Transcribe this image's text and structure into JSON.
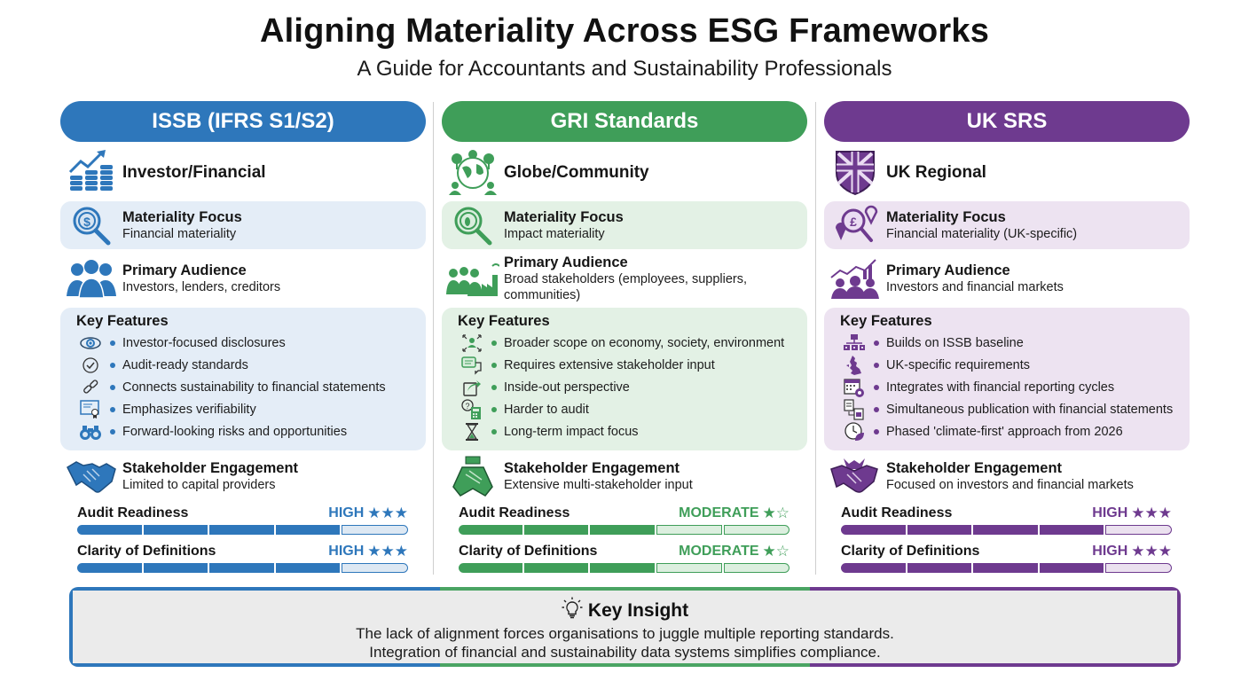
{
  "title": "Aligning Materiality Across ESG Frameworks",
  "subtitle": "A Guide for Accountants and Sustainability Professionals",
  "columns": [
    {
      "name": "ISSB (IFRS S1/S2)",
      "color": "#2e77bb",
      "light": "#e4edf7",
      "bar_empty": "#dde8f3",
      "orientation": {
        "icon": "coins-growth-icon",
        "label": "Investor/Financial"
      },
      "materiality": {
        "icon": "dollar-magnifier-icon",
        "label": "Materiality Focus",
        "value": "Financial materiality"
      },
      "audience": {
        "icon": "business-people-icon",
        "label": "Primary Audience",
        "value": "Investors, lenders, creditors"
      },
      "features_title": "Key Features",
      "features": [
        {
          "icon": "eye-icon",
          "text": "Investor-focused disclosures"
        },
        {
          "icon": "check-circle-icon",
          "text": "Audit-ready standards"
        },
        {
          "icon": "link-icon",
          "text": "Connects sustainability to financial statements"
        },
        {
          "icon": "certificate-icon",
          "text": "Emphasizes verifiability"
        },
        {
          "icon": "binoculars-icon",
          "text": "Forward-looking risks and opportunities"
        }
      ],
      "engagement": {
        "icon": "handshake-icon",
        "label": "Stakeholder Engagement",
        "value": "Limited to capital providers"
      },
      "metrics": [
        {
          "label": "Audit Readiness",
          "rating": "HIGH",
          "stars_filled": 3,
          "stars_total": 3,
          "segments_filled": 4,
          "segments_total": 5
        },
        {
          "label": "Clarity of Definitions",
          "rating": "HIGH",
          "stars_filled": 3,
          "stars_total": 3,
          "segments_filled": 4,
          "segments_total": 5
        }
      ]
    },
    {
      "name": "GRI Standards",
      "color": "#3f9e59",
      "light": "#e3f1e5",
      "bar_empty": "#dcefdf",
      "orientation": {
        "icon": "globe-community-icon",
        "label": "Globe/Community"
      },
      "materiality": {
        "icon": "footprint-magnifier-icon",
        "label": "Materiality Focus",
        "value": "Impact materiality"
      },
      "audience": {
        "icon": "people-factory-icon",
        "label": "Primary Audience",
        "value": "Broad stakeholders (employees, suppliers, communities)"
      },
      "features_title": "Key Features",
      "features": [
        {
          "icon": "expand-person-icon",
          "text": "Broader scope on economy, society, environment"
        },
        {
          "icon": "chat-bubbles-icon",
          "text": "Requires extensive stakeholder input"
        },
        {
          "icon": "share-out-icon",
          "text": "Inside-out perspective"
        },
        {
          "icon": "calculator-question-icon",
          "text": "Harder to audit"
        },
        {
          "icon": "hourglass-icon",
          "text": "Long-term impact focus"
        }
      ],
      "engagement": {
        "icon": "stacked-hands-icon",
        "label": "Stakeholder Engagement",
        "value": "Extensive multi-stakeholder input"
      },
      "metrics": [
        {
          "label": "Audit Readiness",
          "rating": "MODERATE",
          "stars_filled": 1,
          "stars_total": 2,
          "segments_filled": 3,
          "segments_total": 5
        },
        {
          "label": "Clarity of Definitions",
          "rating": "MODERATE",
          "stars_filled": 1,
          "stars_total": 2,
          "segments_filled": 3,
          "segments_total": 5
        }
      ]
    },
    {
      "name": "UK SRS",
      "color": "#6e3a8f",
      "light": "#ede3f1",
      "bar_empty": "#ebe1ef",
      "orientation": {
        "icon": "union-jack-shield-icon",
        "label": "UK Regional"
      },
      "materiality": {
        "icon": "pound-magnifier-pins-icon",
        "label": "Materiality Focus",
        "value": "Financial materiality (UK-specific)"
      },
      "audience": {
        "icon": "crowd-chart-icon",
        "label": "Primary Audience",
        "value": "Investors and financial markets"
      },
      "features_title": "Key Features",
      "features": [
        {
          "icon": "hierarchy-icon",
          "text": "Builds on ISSB baseline"
        },
        {
          "icon": "uk-map-icon",
          "text": "UK-specific requirements"
        },
        {
          "icon": "calendar-gear-icon",
          "text": "Integrates with financial reporting cycles"
        },
        {
          "icon": "documents-icon",
          "text": "Simultaneous publication with financial statements"
        },
        {
          "icon": "clock-leaf-icon",
          "text": "Phased 'climate-first' approach from 2026"
        }
      ],
      "engagement": {
        "icon": "suits-handshake-icon",
        "label": "Stakeholder Engagement",
        "value": "Focused on investors and financial markets"
      },
      "metrics": [
        {
          "label": "Audit Readiness",
          "rating": "HIGH",
          "stars_filled": 3,
          "stars_total": 3,
          "segments_filled": 4,
          "segments_total": 5
        },
        {
          "label": "Clarity of Definitions",
          "rating": "HIGH",
          "stars_filled": 3,
          "stars_total": 3,
          "segments_filled": 4,
          "segments_total": 5
        }
      ]
    }
  ],
  "insight": {
    "icon": "lightbulb-icon",
    "title": "Key Insight",
    "lines": [
      "The lack of alignment forces organisations to juggle multiple reporting standards.",
      "Integration of financial and sustainability data systems simplifies compliance."
    ]
  }
}
